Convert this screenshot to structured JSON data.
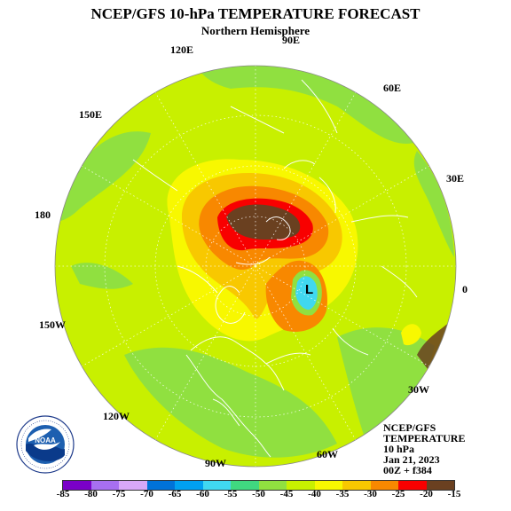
{
  "header": {
    "title": "NCEP/GFS 10-hPa TEMPERATURE FORECAST",
    "subtitle": "Northern Hemisphere"
  },
  "longitude_labels": {
    "e90": "90E",
    "e120": "120E",
    "e60": "60E",
    "e150": "150E",
    "e30": "30E",
    "d180": "180",
    "zero": "0",
    "w150": "150W",
    "w30": "30W",
    "w120": "120W",
    "w60": "60W",
    "w90": "90W"
  },
  "markers": {
    "low": "L"
  },
  "info_box": {
    "line1": "NCEP/GFS",
    "line2": "TEMPERATURE",
    "line3": "10 hPa",
    "line4": "Jan 21, 2023",
    "line5": "00Z + f384"
  },
  "logo": {
    "text": "NOAA",
    "ring_text": "U.S. DEPARTMENT OF COMMERCE · NATIONAL OCEANIC AND ATMOSPHERIC ADMINISTRATION"
  },
  "legend": {
    "labels": [
      "-85",
      "-80",
      "-75",
      "-70",
      "-65",
      "-60",
      "-55",
      "-50",
      "-45",
      "-40",
      "-35",
      "-30",
      "-25",
      "-20",
      "-15"
    ],
    "colors": [
      "#7a00c8",
      "#a76ff0",
      "#d8a8f8",
      "#0072d8",
      "#00a0f0",
      "#40d8f0",
      "#40d880",
      "#90e040",
      "#c8f000",
      "#f8f800",
      "#f8c800",
      "#f88800",
      "#f80000",
      "#6a4020"
    ]
  },
  "colors": {
    "background_field": "#c8f000",
    "warm_band": "#f8f800",
    "core_brown": "#6a4020",
    "cold_low": "#40d8f0",
    "coast_lines": "#ffffff"
  }
}
